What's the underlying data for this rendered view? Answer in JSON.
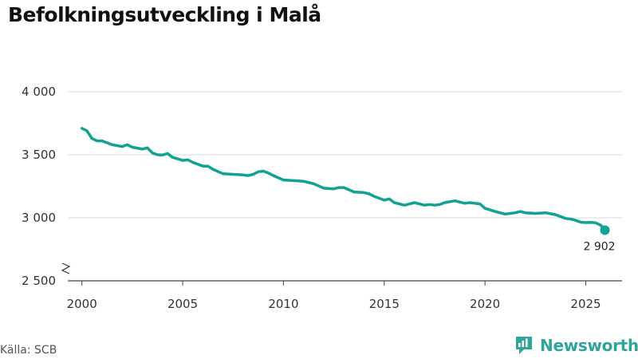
{
  "title": "Befolkningsutveckling i Malå",
  "source": "Källa: SCB",
  "brand": {
    "name": "Newsworthy",
    "color": "#2fa59a",
    "logo_icon": "newsworthy-logo-icon"
  },
  "chart_data": {
    "type": "line",
    "title": "Befolkningsutveckling i Malå",
    "xlabel": "",
    "ylabel": "",
    "xlim": [
      1999.3,
      2026.8
    ],
    "ylim": [
      2500,
      4000
    ],
    "y_axis_break": true,
    "grid": true,
    "line_color": "#12a292",
    "x_ticks": [
      2000,
      2005,
      2010,
      2015,
      2020,
      2025
    ],
    "x_tick_labels": [
      "2000",
      "2005",
      "2010",
      "2015",
      "2020",
      "2025"
    ],
    "y_ticks": [
      2500,
      3000,
      3500,
      4000
    ],
    "y_tick_labels": [
      "2 500",
      "3 000",
      "3 500",
      "4 000"
    ],
    "series": [
      {
        "name": "Befolkning",
        "x": [
          2000.0,
          2000.25,
          2000.5,
          2000.75,
          2001.0,
          2001.5,
          2002.0,
          2002.25,
          2002.5,
          2003.0,
          2003.25,
          2003.5,
          2003.75,
          2004.0,
          2004.25,
          2004.5,
          2005.0,
          2005.25,
          2005.5,
          2006.0,
          2006.25,
          2006.5,
          2007.0,
          2007.5,
          2008.0,
          2008.25,
          2008.5,
          2008.75,
          2009.0,
          2009.25,
          2009.5,
          2010.0,
          2010.5,
          2011.0,
          2011.5,
          2012.0,
          2012.5,
          2012.75,
          2013.0,
          2013.5,
          2014.0,
          2014.25,
          2014.5,
          2014.75,
          2015.0,
          2015.25,
          2015.5,
          2016.0,
          2016.5,
          2017.0,
          2017.25,
          2017.5,
          2017.75,
          2018.0,
          2018.5,
          2019.0,
          2019.25,
          2019.5,
          2019.75,
          2020.0,
          2020.5,
          2021.0,
          2021.5,
          2021.75,
          2022.0,
          2022.5,
          2023.0,
          2023.5,
          2024.0,
          2024.25,
          2024.5,
          2024.75,
          2025.0,
          2025.25,
          2025.5,
          2025.75,
          2025.95
        ],
        "values": [
          3710,
          3690,
          3630,
          3610,
          3610,
          3580,
          3565,
          3580,
          3560,
          3545,
          3555,
          3515,
          3500,
          3498,
          3510,
          3480,
          3455,
          3460,
          3440,
          3410,
          3410,
          3385,
          3350,
          3345,
          3340,
          3335,
          3345,
          3365,
          3370,
          3355,
          3335,
          3300,
          3295,
          3290,
          3270,
          3235,
          3230,
          3240,
          3240,
          3205,
          3200,
          3190,
          3170,
          3155,
          3140,
          3150,
          3120,
          3100,
          3120,
          3100,
          3105,
          3100,
          3105,
          3120,
          3135,
          3115,
          3120,
          3115,
          3110,
          3075,
          3050,
          3030,
          3040,
          3050,
          3040,
          3035,
          3040,
          3025,
          2995,
          2990,
          2980,
          2965,
          2962,
          2963,
          2960,
          2940,
          2902
        ]
      }
    ],
    "last_point": {
      "x": 2025.95,
      "value": 2902,
      "label": "2 902"
    }
  }
}
